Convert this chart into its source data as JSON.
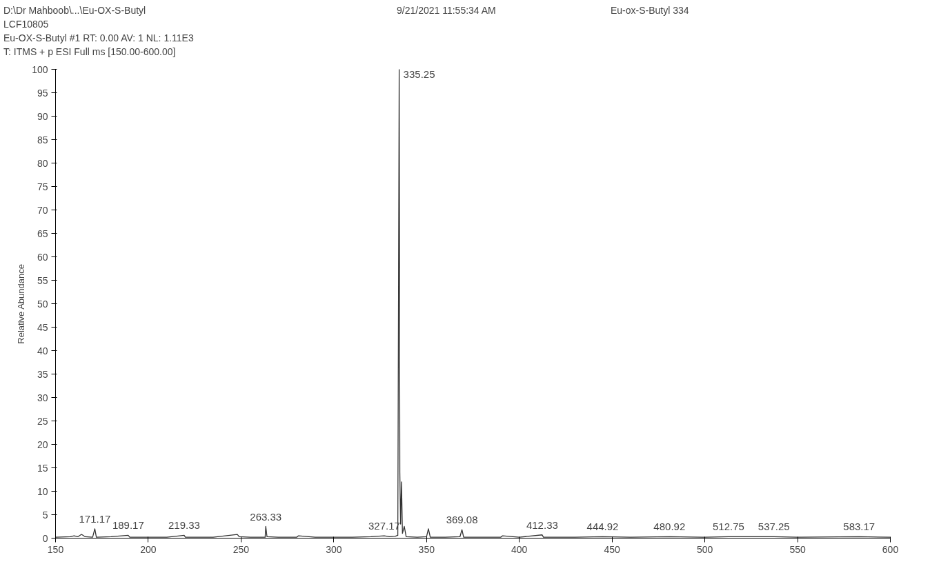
{
  "chart_data": {
    "type": "line",
    "title": "Eu-ox-S-Butyl 334",
    "subtitle": "9/21/2021 11:55:34 AM",
    "ylabel": "Relative Abundance",
    "annotations": [
      "D:\\Dr Mahboob\\...\\Eu-OX-S-Butyl",
      "LCF10805",
      "Eu-OX-S-Butyl #1  RT: 0.00  AV: 1  NL: 1.11E3",
      "T: ITMS + p ESI Full ms [150.00-600.00]",
      {
        "text": "335.25",
        "x": 335.25,
        "y": 100
      },
      {
        "text": "171.17",
        "x": 171.17,
        "y": 2
      },
      {
        "text": "189.17",
        "x": 189.17,
        "y": 0.6
      },
      {
        "text": "219.33",
        "x": 219.33,
        "y": 0.6
      },
      {
        "text": "263.33",
        "x": 263.33,
        "y": 2.5
      },
      {
        "text": "327.17",
        "x": 327.17,
        "y": 0.5
      },
      {
        "text": "369.08",
        "x": 369.08,
        "y": 1.8
      },
      {
        "text": "412.33",
        "x": 412.33,
        "y": 0.7
      },
      {
        "text": "444.92",
        "x": 444.92,
        "y": 0.3
      },
      {
        "text": "480.92",
        "x": 480.92,
        "y": 0.3
      },
      {
        "text": "512.75",
        "x": 512.75,
        "y": 0.3
      },
      {
        "text": "537.25",
        "x": 537.25,
        "y": 0.3
      },
      {
        "text": "583.17",
        "x": 583.17,
        "y": 0.3
      }
    ],
    "series": [
      {
        "color": "#333333",
        "x": [
          150,
          158,
          160,
          162,
          164,
          166,
          170,
          171.17,
          172,
          180,
          189.17,
          190,
          200,
          210,
          219.33,
          220,
          235,
          248,
          249,
          255,
          263,
          263.33,
          264,
          270,
          280,
          281,
          290,
          300,
          310,
          320,
          327.17,
          330,
          333,
          334.5,
          335.25,
          335.6,
          336,
          336.5,
          337,
          338,
          339,
          345,
          350,
          351,
          352,
          360,
          368,
          369.08,
          370,
          380,
          390,
          391,
          400,
          412.33,
          413,
          420,
          430,
          444.92,
          460,
          480.92,
          500,
          512.75,
          537.25,
          550,
          583.17,
          600
        ],
        "values": [
          0.2,
          0.3,
          0.5,
          0.3,
          0.8,
          0.3,
          0.2,
          2,
          0.2,
          0.3,
          0.6,
          0.2,
          0.2,
          0.2,
          0.6,
          0.2,
          0.2,
          0.8,
          0.3,
          0.2,
          0.2,
          2.5,
          0.3,
          0.2,
          0.2,
          0.5,
          0.2,
          0.2,
          0.2,
          0.3,
          0.5,
          0.3,
          0.4,
          0.6,
          100,
          14,
          3,
          12,
          1,
          2.5,
          0.3,
          0.2,
          0.3,
          2,
          0.2,
          0.2,
          0.3,
          1.8,
          0.2,
          0.2,
          0.2,
          0.5,
          0.2,
          0.7,
          0.2,
          0.2,
          0.2,
          0.3,
          0.2,
          0.3,
          0.2,
          0.3,
          0.3,
          0.2,
          0.3,
          0.2
        ]
      }
    ],
    "xlim": [
      150,
      600
    ],
    "ylim": [
      0,
      100
    ],
    "xticks": [
      150,
      200,
      250,
      300,
      350,
      400,
      450,
      500,
      550,
      600
    ],
    "yticks": [
      0,
      5,
      10,
      15,
      20,
      25,
      30,
      35,
      40,
      45,
      50,
      55,
      60,
      65,
      70,
      75,
      80,
      85,
      90,
      95,
      100
    ],
    "grid": false,
    "marker": "none",
    "line_style": "solid"
  }
}
